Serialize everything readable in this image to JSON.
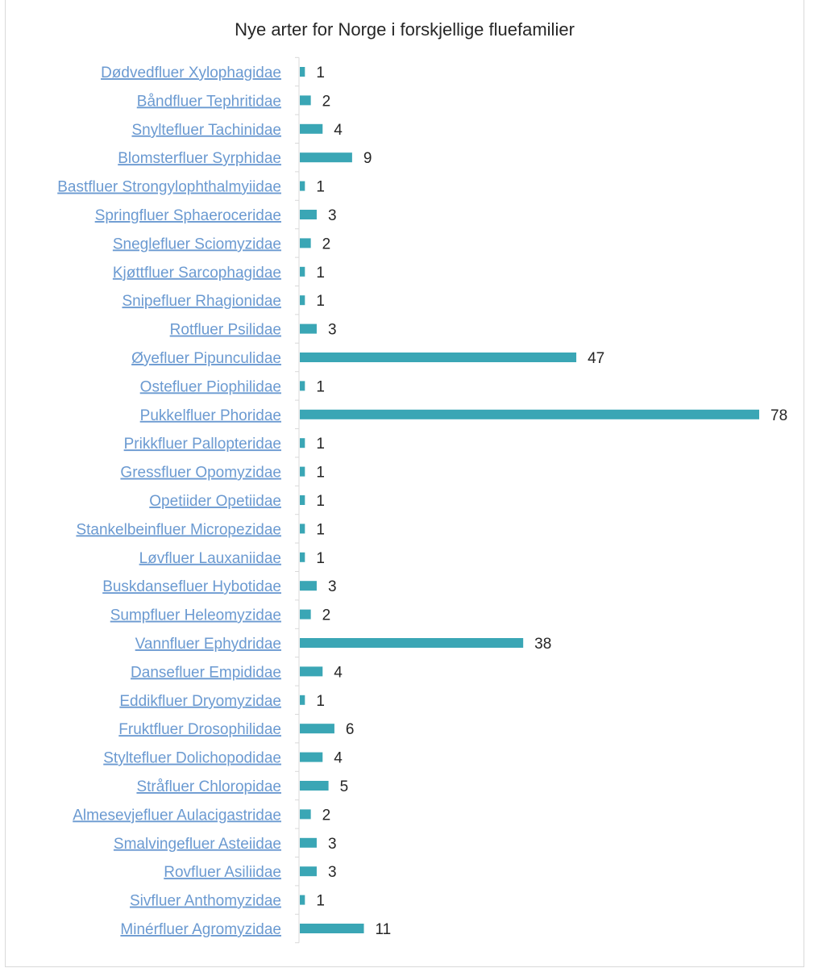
{
  "chart_data": {
    "type": "bar",
    "orientation": "horizontal",
    "title": "Nye arter for Norge i forskjellige fluefamilier",
    "xlabel": "",
    "ylabel": "",
    "grid": false,
    "legend": "none",
    "bar_color": "#3aa6b5",
    "label_color": "#6b9ad1",
    "xlim": [
      0,
      78
    ],
    "categories": [
      "Dødvedfluer Xylophagidae",
      "Båndfluer Tephritidae",
      "Snyltefluer Tachinidae",
      "Blomsterfluer Syrphidae",
      "Bastfluer Strongylophthalmyiidae",
      "Springfluer Sphaeroceridae",
      "Sneglefluer Sciomyzidae",
      "Kjøttfluer Sarcophagidae",
      "Snipefluer Rhagionidae",
      "Rotfluer Psilidae",
      "Øyefluer Pipunculidae",
      "Ostefluer Piophilidae",
      "Pukkelfluer Phoridae",
      "Prikkfluer Pallopteridae",
      "Gressfluer Opomyzidae",
      "Opetiider Opetiidae",
      "Stankelbeinfluer Micropezidae",
      "Løvfluer Lauxaniidae",
      "Buskdansefluer Hybotidae",
      "Sumpfluer Heleomyzidae",
      "Vannfluer Ephydridae",
      "Dansefluer Empididae",
      "Eddikfluer Dryomyzidae",
      "Fruktfluer Drosophilidae",
      "Styltefluer Dolichopodidae",
      "Stråfluer Chloropidae",
      "Almesevjefluer Aulacigastridae",
      "Smalvingefluer Asteiidae",
      "Rovfluer Asiliidae",
      "Sivfluer Anthomyzidae",
      "Minérfluer Agromyzidae"
    ],
    "values": [
      1,
      2,
      4,
      9,
      1,
      3,
      2,
      1,
      1,
      3,
      47,
      1,
      78,
      1,
      1,
      1,
      1,
      1,
      3,
      2,
      38,
      4,
      1,
      6,
      4,
      5,
      2,
      3,
      3,
      1,
      11
    ]
  }
}
